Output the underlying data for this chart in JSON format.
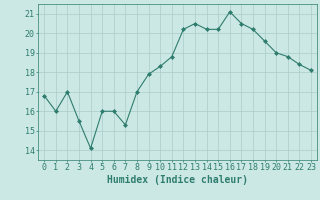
{
  "x": [
    0,
    1,
    2,
    3,
    4,
    5,
    6,
    7,
    8,
    9,
    10,
    11,
    12,
    13,
    14,
    15,
    16,
    17,
    18,
    19,
    20,
    21,
    22,
    23
  ],
  "y": [
    16.8,
    16.0,
    17.0,
    15.5,
    14.1,
    16.0,
    16.0,
    15.3,
    17.0,
    17.9,
    18.3,
    18.8,
    20.2,
    20.5,
    20.2,
    20.2,
    21.1,
    20.5,
    20.2,
    19.6,
    19.0,
    18.8,
    18.4,
    18.1
  ],
  "line_color": "#2e7d6e",
  "marker": "D",
  "marker_size": 2,
  "bg_color": "#cce8e4",
  "grid_color": "#aaccca",
  "xlabel": "Humidex (Indice chaleur)",
  "ylim": [
    13.5,
    21.5
  ],
  "xlim": [
    -0.5,
    23.5
  ],
  "yticks": [
    14,
    15,
    16,
    17,
    18,
    19,
    20,
    21
  ],
  "xticks": [
    0,
    1,
    2,
    3,
    4,
    5,
    6,
    7,
    8,
    9,
    10,
    11,
    12,
    13,
    14,
    15,
    16,
    17,
    18,
    19,
    20,
    21,
    22,
    23
  ],
  "tick_color": "#2e7d6e",
  "label_color": "#2e7d6e",
  "tick_fontsize": 6,
  "xlabel_fontsize": 7
}
